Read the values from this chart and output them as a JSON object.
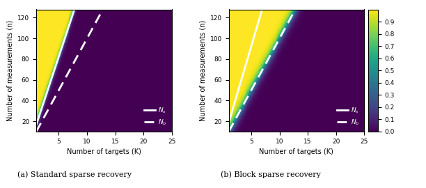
{
  "title_a": "(a) Standard sparse recovery",
  "title_b": "(b) Block sparse recovery",
  "xlabel": "Number of targets (K)",
  "ylabel_a": "Number of measurements (n)",
  "ylabel_b": "Number of measurements (n)",
  "K_min": 1,
  "K_max": 25,
  "n_min": 10,
  "n_max": 128,
  "N": 128,
  "colormap": "viridis",
  "vmin": 0,
  "vmax": 1,
  "xticks": [
    5,
    10,
    15,
    20,
    25
  ],
  "yticks": [
    20,
    40,
    60,
    80,
    100,
    120
  ],
  "legend_solid": "N_s",
  "legend_dashed": "N_b",
  "colorbar_ticks": [
    0,
    0.1,
    0.2,
    0.3,
    0.4,
    0.5,
    0.6,
    0.7,
    0.8,
    0.9
  ],
  "ns_slope_a": 16.5,
  "nb_slope_a": 10.0,
  "ns_slope_b": 18.5,
  "nb_slope_b": 10.0,
  "transition_sharpness_a": 3.0,
  "transition_sharpness_b": 4.0
}
